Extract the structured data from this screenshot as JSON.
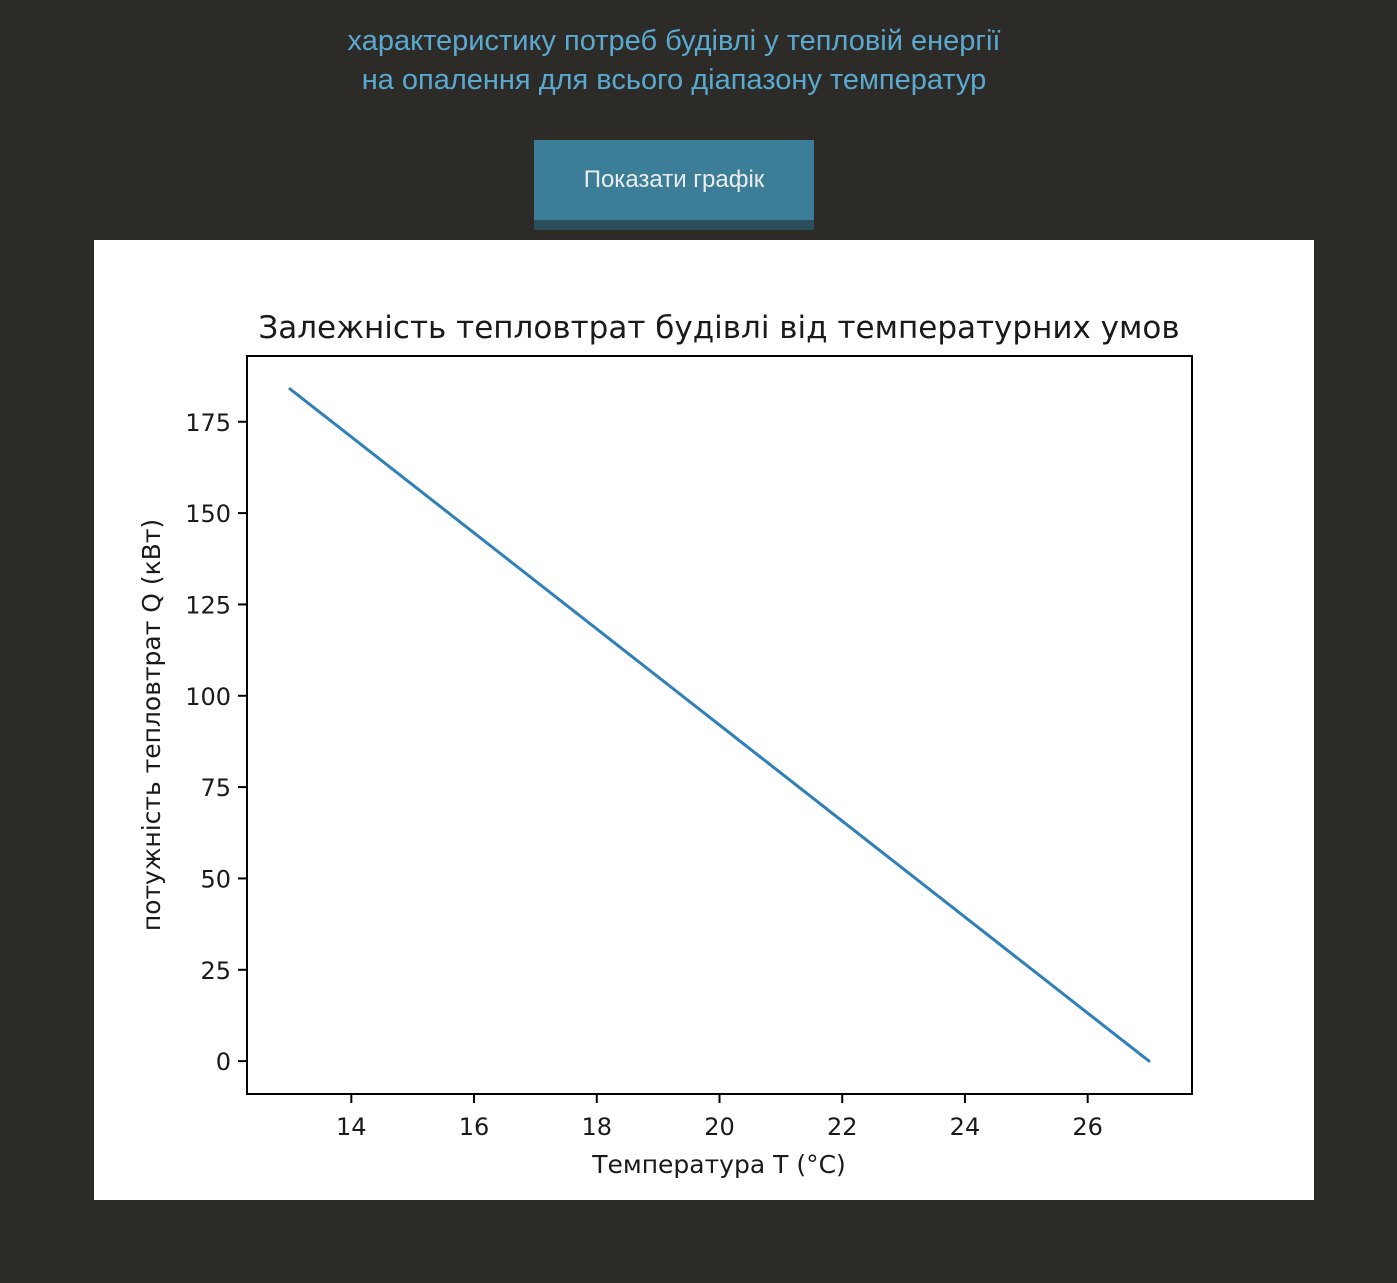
{
  "header": {
    "line1": "характеристику потреб будівлі у тепловій енергії",
    "line2": "на опалення для всього діапазону температур"
  },
  "toolbar": {
    "show_chart_label": "Показати графік"
  },
  "colors": {
    "background": "#2d2b28",
    "header_text": "#5aa9cf",
    "button": "#3c7e97",
    "series_line": "#2f7fb8"
  },
  "chart_data": {
    "type": "line",
    "title": "Залежність тепловтрат будівлі від температурних умов",
    "xlabel": "Температура T (°C)",
    "ylabel": "потужність тепловтрат Q (кВт)",
    "xlim": [
      12.3,
      27.7
    ],
    "ylim": [
      -9,
      193
    ],
    "xticks": [
      14,
      16,
      18,
      20,
      22,
      24,
      26
    ],
    "yticks": [
      0,
      25,
      50,
      75,
      100,
      125,
      150,
      175
    ],
    "grid": false,
    "series": [
      {
        "x": [
          13,
          27
        ],
        "y": [
          184,
          0
        ]
      }
    ]
  }
}
